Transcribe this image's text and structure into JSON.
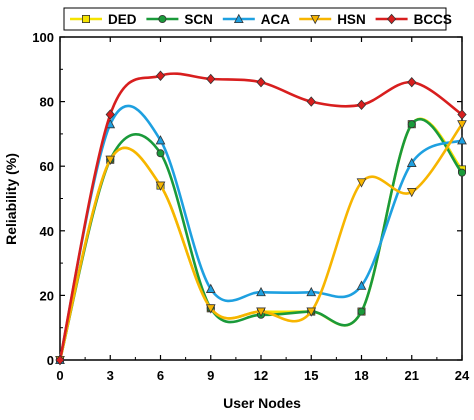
{
  "chart_data": {
    "type": "line",
    "xlabel": "User Nodes",
    "ylabel": "Reliability (%)",
    "x": [
      0,
      3,
      6,
      9,
      12,
      15,
      18,
      21,
      24
    ],
    "xlim": [
      0,
      24
    ],
    "ylim": [
      0,
      100
    ],
    "xticks": [
      0,
      3,
      6,
      9,
      12,
      15,
      18,
      21,
      24
    ],
    "yticks": [
      0,
      20,
      40,
      60,
      80,
      100
    ],
    "grid": false,
    "legend_position": "top",
    "series": [
      {
        "name": "DED",
        "color": "#f5e300",
        "marker": "square",
        "values": [
          0,
          62,
          54,
          16,
          15,
          15,
          15,
          73,
          59
        ]
      },
      {
        "name": "SCN",
        "color": "#1a9a3a",
        "marker": "circle",
        "values": [
          0,
          62,
          64,
          16,
          14,
          15,
          15,
          73,
          58
        ]
      },
      {
        "name": "ACA",
        "color": "#1ea0e0",
        "marker": "triangle-up",
        "values": [
          0,
          73,
          68,
          22,
          21,
          21,
          23,
          61,
          68
        ]
      },
      {
        "name": "HSN",
        "color": "#f7b500",
        "marker": "triangle-down",
        "values": [
          0,
          62,
          54,
          16,
          15,
          15,
          55,
          52,
          73
        ]
      },
      {
        "name": "BCCS",
        "color": "#d81e1e",
        "marker": "diamond",
        "values": [
          0,
          76,
          88,
          87,
          86,
          80,
          79,
          86,
          76
        ]
      }
    ]
  }
}
